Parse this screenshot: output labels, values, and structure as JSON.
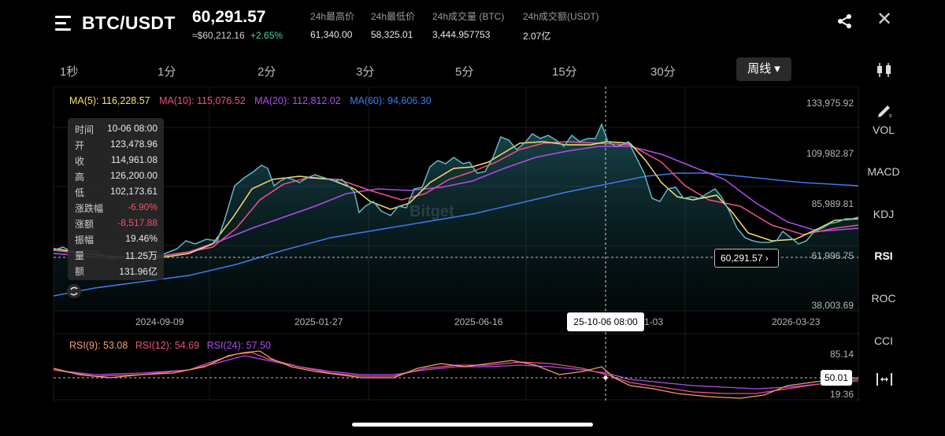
{
  "header": {
    "pair": "BTC/USDT",
    "price": "60,291.57",
    "price_converted": "≈$60,212.16",
    "change": "+2.65%",
    "stats": [
      {
        "label": "24h最高价",
        "value": "61,340.00"
      },
      {
        "label": "24h最低价",
        "value": "58,325.01"
      },
      {
        "label": "24h成交量 (BTC)",
        "value": "3,444.957753"
      },
      {
        "label": "24h成交额(USDT)",
        "value": "2.07亿"
      }
    ]
  },
  "timeframes": [
    "1秒",
    "1分",
    "2分",
    "3分",
    "5分",
    "15分",
    "30分"
  ],
  "active_timeframe": "周线 ▾",
  "ma_legend": [
    {
      "text": "MA(5): 116,228.57",
      "color": "#f7e06a"
    },
    {
      "text": "MA(10): 115,076.52",
      "color": "#f0508a"
    },
    {
      "text": "MA(20): 112,812.02",
      "color": "#b14cf0"
    },
    {
      "text": "MA(60): 94,606.30",
      "color": "#3d7cf0"
    }
  ],
  "tooltip": [
    {
      "k": "时间",
      "v": "10-06 08:00"
    },
    {
      "k": "开",
      "v": "123,478.96"
    },
    {
      "k": "收",
      "v": "114,961.08"
    },
    {
      "k": "高",
      "v": "126,200.00"
    },
    {
      "k": "低",
      "v": "102,173.61"
    },
    {
      "k": "涨跌幅",
      "v": "-6.90%",
      "neg": true
    },
    {
      "k": "涨额",
      "v": "-8,517.88",
      "neg": true
    },
    {
      "k": "振幅",
      "v": "19.46%"
    },
    {
      "k": "量",
      "v": "11.25万"
    },
    {
      "k": "额",
      "v": "131.96亿"
    }
  ],
  "y_axis": [
    "133,975.92",
    "109,982.87",
    "85,989.81",
    "61,996.75",
    "38,003.69"
  ],
  "x_axis": [
    "2024-09-09",
    "2025-01-27",
    "2025-06-16",
    "1-03",
    "2026-03-23"
  ],
  "current_price_tag": "60,291.57 ›",
  "crosshair_date": "25-10-06 08:00",
  "watermark": "Bitget",
  "rsi_legend": [
    {
      "text": "RSI(9): 53.08",
      "color": "#f0a06a"
    },
    {
      "text": "RSI(12): 54.69",
      "color": "#f0508a"
    },
    {
      "text": "RSI(24): 57.50",
      "color": "#b14cf0"
    }
  ],
  "rsi_axis": [
    "85.14",
    "19.36"
  ],
  "rsi_crosshair_value": "50.01",
  "side_panel": [
    "VOL",
    "MACD",
    "KDJ",
    "RSI",
    "ROC",
    "CCI"
  ],
  "colors": {
    "price_line": "#5fb8c8",
    "ma5": "#f7e06a",
    "ma10": "#f0508a",
    "ma20": "#b14cf0",
    "ma60": "#3d7cf0",
    "negative": "#f0506e",
    "positive": "#3fd6a0"
  }
}
